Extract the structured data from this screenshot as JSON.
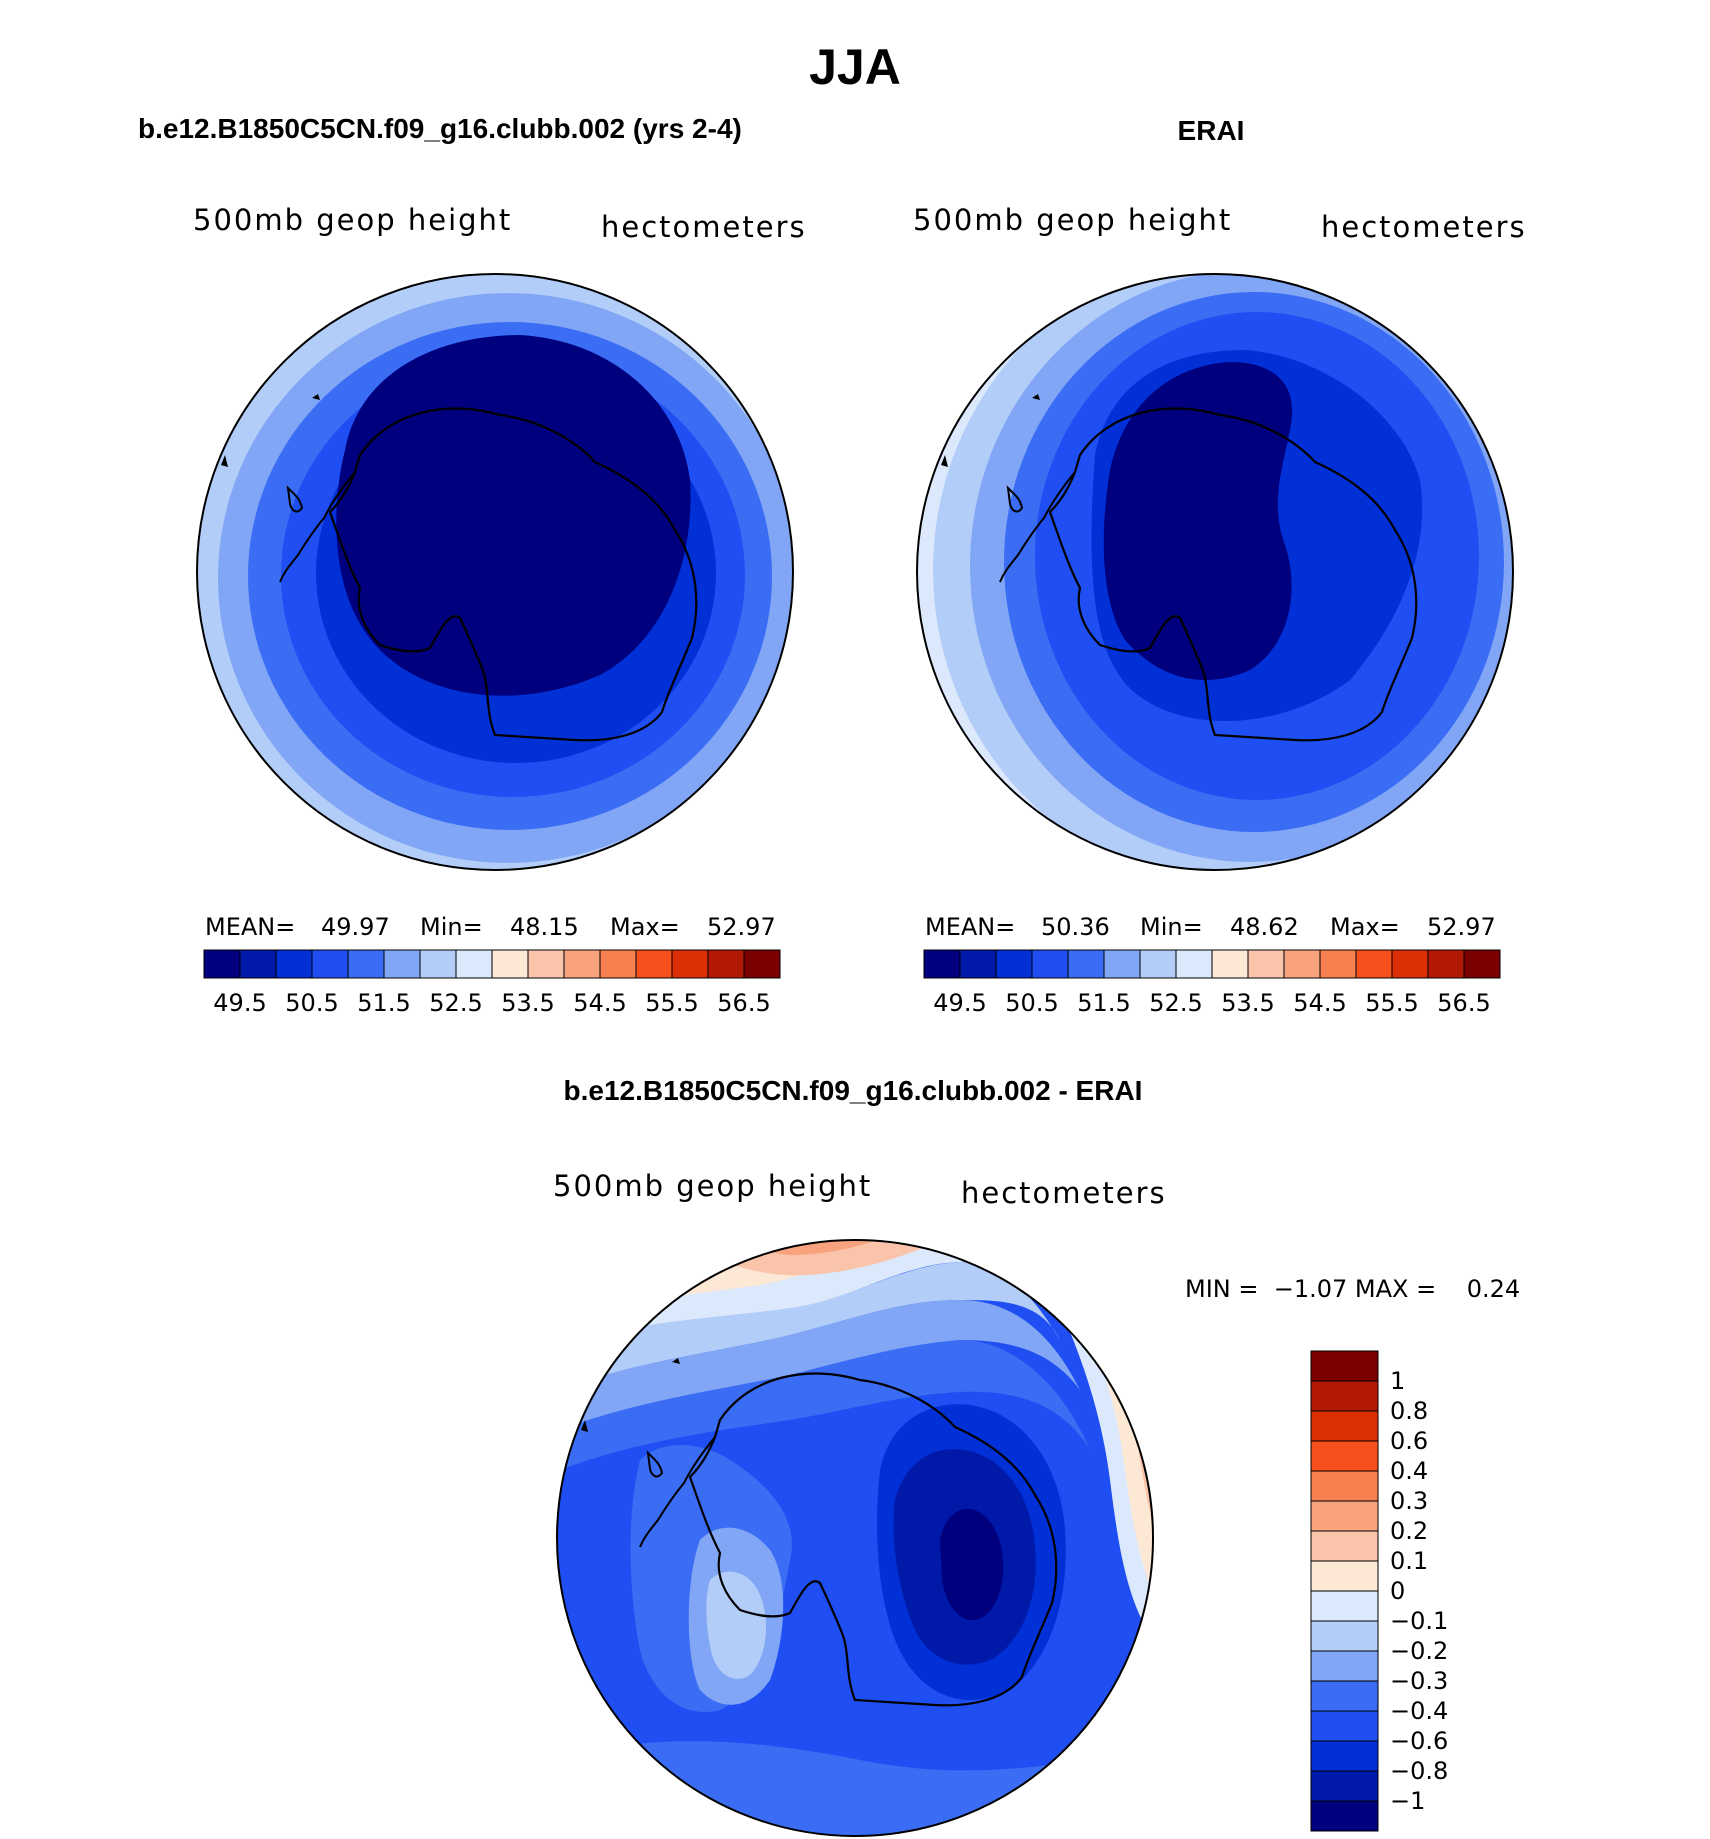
{
  "main_title": "JJA",
  "panels": {
    "model": {
      "title": "b.e12.B1850C5CN.f09_g16.clubb.002 (yrs 2-4)",
      "variable": "500mb geop height",
      "units": "hectometers",
      "stats": {
        "mean_label": "MEAN=",
        "mean": "49.97",
        "min_label": "Min=",
        "min": "48.15",
        "max_label": "Max=",
        "max": "52.97"
      }
    },
    "obs": {
      "title": "ERAI",
      "variable": "500mb geop height",
      "units": "hectometers",
      "stats": {
        "mean_label": "MEAN=",
        "mean": "50.36",
        "min_label": "Min=",
        "min": "48.62",
        "max_label": "Max=",
        "max": "52.97"
      }
    },
    "diff": {
      "title": "b.e12.B1850C5CN.f09_g16.clubb.002 - ERAI",
      "variable": "500mb geop height",
      "units": "hectometers",
      "minmax": "MIN =  −1.07 MAX =    0.24"
    }
  },
  "horizontal_colorbar": {
    "colors": [
      "#00007e",
      "#0019a8",
      "#0030d6",
      "#1f4ff2",
      "#3a6cf4",
      "#82a6f6",
      "#b3cdf9",
      "#dce9fc",
      "#fde8d6",
      "#fac4ab",
      "#f8a27e",
      "#f78050",
      "#f7501c",
      "#dc2f06",
      "#b31a04",
      "#7d0000"
    ],
    "labels": [
      "49.5",
      "50.5",
      "51.5",
      "52.5",
      "53.5",
      "54.5",
      "55.5",
      "56.5"
    ]
  },
  "vertical_colorbar": {
    "colors_top_to_bottom": [
      "#7d0000",
      "#b31a04",
      "#dc2f06",
      "#f7501c",
      "#f78050",
      "#f8a27e",
      "#fac4ab",
      "#fde8d6",
      "#dce9fc",
      "#b3cdf9",
      "#82a6f6",
      "#3a6cf4",
      "#1f4ff2",
      "#0030d6",
      "#0019a8",
      "#00007e"
    ],
    "labels_top_to_bottom": [
      "1",
      "0.8",
      "0.6",
      "0.4",
      "0.3",
      "0.2",
      "0.1",
      "0",
      "−0.1",
      "−0.2",
      "−0.3",
      "−0.4",
      "−0.6",
      "−0.8",
      "−1"
    ]
  }
}
